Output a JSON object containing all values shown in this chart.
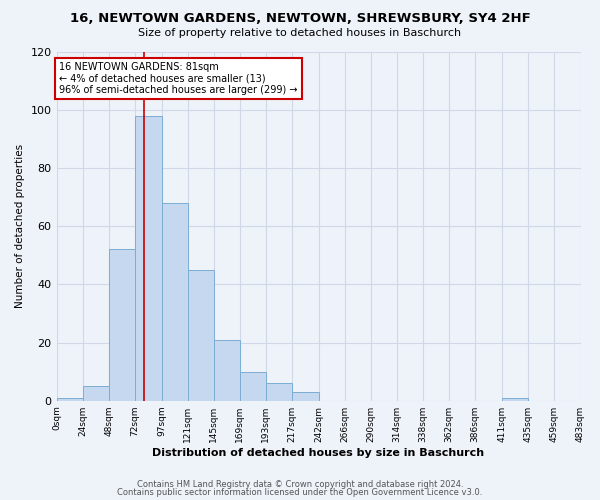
{
  "title": "16, NEWTOWN GARDENS, NEWTOWN, SHREWSBURY, SY4 2HF",
  "subtitle": "Size of property relative to detached houses in Baschurch",
  "xlabel": "Distribution of detached houses by size in Baschurch",
  "ylabel": "Number of detached properties",
  "bar_values": [
    1,
    5,
    52,
    98,
    68,
    45,
    21,
    10,
    6,
    3,
    0,
    0,
    0,
    0,
    0,
    0,
    0,
    1,
    0,
    0
  ],
  "bin_edges": [
    0,
    24,
    48,
    72,
    97,
    121,
    145,
    169,
    193,
    217,
    242,
    266,
    290,
    314,
    338,
    362,
    386,
    411,
    435,
    459,
    483
  ],
  "tick_labels": [
    "0sqm",
    "24sqm",
    "48sqm",
    "72sqm",
    "97sqm",
    "121sqm",
    "145sqm",
    "169sqm",
    "193sqm",
    "217sqm",
    "242sqm",
    "266sqm",
    "290sqm",
    "314sqm",
    "338sqm",
    "362sqm",
    "386sqm",
    "411sqm",
    "435sqm",
    "459sqm",
    "483sqm"
  ],
  "bar_color": "#c5d8f0",
  "bar_edge_color": "#7baed4",
  "property_line_x": 81,
  "ylim": [
    0,
    120
  ],
  "yticks": [
    0,
    20,
    40,
    60,
    80,
    100,
    120
  ],
  "annotation_text": "16 NEWTOWN GARDENS: 81sqm\n← 4% of detached houses are smaller (13)\n96% of semi-detached houses are larger (299) →",
  "annotation_box_color": "#ffffff",
  "annotation_border_color": "#cc0000",
  "grid_color": "#d0d8e8",
  "footer_line1": "Contains HM Land Registry data © Crown copyright and database right 2024.",
  "footer_line2": "Contains public sector information licensed under the Open Government Licence v3.0.",
  "bg_color": "#eef2f9"
}
